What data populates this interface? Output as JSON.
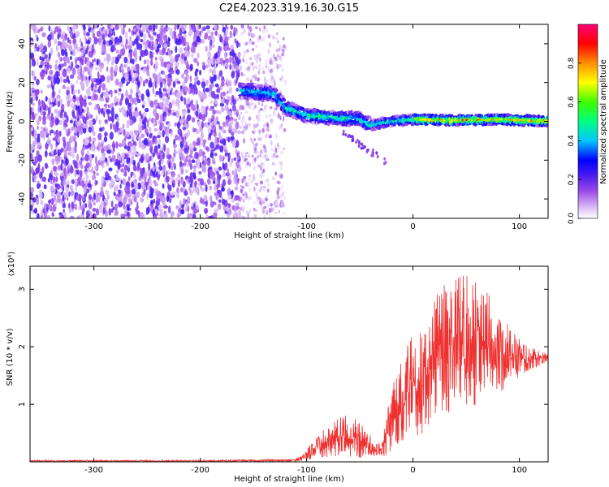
{
  "chart_data": [
    {
      "type": "heatmap",
      "title": "C2E4.2023.319.16.30.G15",
      "xlabel": "Height of straight line (km)",
      "ylabel": "Frequency (Hz)",
      "xlim": [
        -360,
        127
      ],
      "ylim": [
        -50,
        50
      ],
      "xticks": [
        -300,
        -200,
        -100,
        0,
        100
      ],
      "yticks": [
        -40,
        -20,
        0,
        20,
        40
      ],
      "colorbar": {
        "label": "Normalized spectral amplitude",
        "range": [
          0,
          1
        ],
        "ticks": [
          "0.0",
          "0.2",
          "0.4",
          "0.6",
          "0.8"
        ],
        "colors": [
          "#ffffff",
          "#c9a2f0",
          "#8a2be2",
          "#0000ff",
          "#00ffff",
          "#00ff00",
          "#ffff00",
          "#ff0000",
          "#ff0077"
        ]
      },
      "features": {
        "noise_region_x": [
          -360,
          -120
        ],
        "signal_track": [
          {
            "x": -160,
            "y": 16
          },
          {
            "x": -130,
            "y": 14
          },
          {
            "x": -120,
            "y": 7
          },
          {
            "x": -100,
            "y": 3
          },
          {
            "x": -80,
            "y": 2
          },
          {
            "x": -50,
            "y": 1
          },
          {
            "x": -40,
            "y": -2
          },
          {
            "x": -20,
            "y": 0
          },
          {
            "x": 0,
            "y": 1
          },
          {
            "x": 40,
            "y": 0.5
          },
          {
            "x": 80,
            "y": 1
          },
          {
            "x": 127,
            "y": 0
          }
        ]
      },
      "grid": false
    },
    {
      "type": "line",
      "title": "",
      "xlabel": "Height of straight line (km)",
      "ylabel": "SNR (10 * v/v)",
      "y_multiplier": "(x10⁴)",
      "xlim": [
        -360,
        127
      ],
      "ylim": [
        0,
        3.4
      ],
      "xticks": [
        -300,
        -200,
        -100,
        0,
        100
      ],
      "yticks": [
        1,
        2,
        3
      ],
      "color": "#ee3030",
      "series": [
        {
          "envelope": [
            {
              "x": -360,
              "min": 0.0,
              "max": 0.03
            },
            {
              "x": -200,
              "min": 0.0,
              "max": 0.03
            },
            {
              "x": -110,
              "min": 0.0,
              "max": 0.05
            },
            {
              "x": -100,
              "min": 0.02,
              "max": 0.2
            },
            {
              "x": -90,
              "min": 0.05,
              "max": 0.5
            },
            {
              "x": -70,
              "min": 0.1,
              "max": 0.8
            },
            {
              "x": -55,
              "min": 0.08,
              "max": 0.8
            },
            {
              "x": -40,
              "min": 0.05,
              "max": 0.5
            },
            {
              "x": -30,
              "min": 0.05,
              "max": 0.3
            },
            {
              "x": -20,
              "min": 0.1,
              "max": 1.3
            },
            {
              "x": -10,
              "min": 0.3,
              "max": 2.0
            },
            {
              "x": 10,
              "min": 0.5,
              "max": 2.4
            },
            {
              "x": 30,
              "min": 0.8,
              "max": 3.2
            },
            {
              "x": 45,
              "min": 0.9,
              "max": 3.3
            },
            {
              "x": 70,
              "min": 1.0,
              "max": 3.0
            },
            {
              "x": 90,
              "min": 1.3,
              "max": 2.4
            },
            {
              "x": 110,
              "min": 1.6,
              "max": 2.0
            },
            {
              "x": 127,
              "min": 1.7,
              "max": 1.9
            }
          ]
        }
      ]
    }
  ]
}
